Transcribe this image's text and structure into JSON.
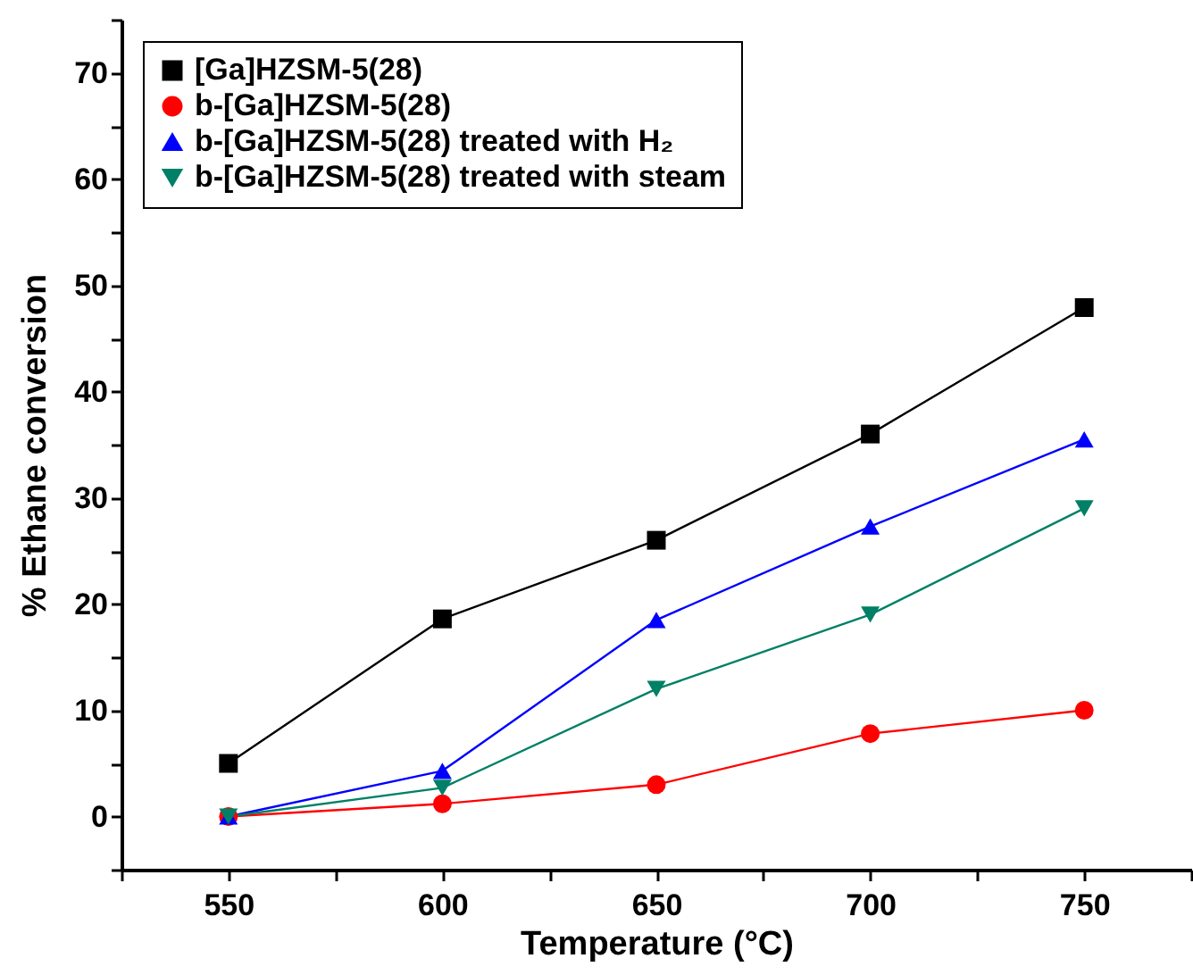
{
  "chart_data": {
    "type": "line",
    "xlabel": "Temperature (°C)",
    "ylabel": "% Ethane conversion",
    "x": [
      550,
      600,
      650,
      700,
      750
    ],
    "series": [
      {
        "name": "[Ga]HZSM-5(28)",
        "color": "#000000",
        "marker": "square",
        "values": [
          5,
          18.6,
          26,
          36,
          47.9
        ]
      },
      {
        "name": "b-[Ga]HZSM-5(28)",
        "color": "#ff0000",
        "marker": "circle",
        "values": [
          0,
          1.2,
          3,
          7.8,
          10
        ]
      },
      {
        "name": "b-[Ga]HZSM-5(28) treated with H₂",
        "color": "#0000ff",
        "marker": "triangle",
        "values": [
          0,
          4.3,
          18.5,
          27.3,
          35.5
        ]
      },
      {
        "name": "b-[Ga]HZSM-5(28) treated with steam",
        "color": "#008066",
        "marker": "triangle-down",
        "values": [
          0,
          2.7,
          12,
          19,
          29
        ]
      }
    ],
    "xlim": [
      525,
      775
    ],
    "xticks": [
      {
        "value": 525,
        "label": null
      },
      550,
      {
        "value": 575,
        "label": null
      },
      600,
      {
        "value": 625,
        "label": null
      },
      650,
      {
        "value": 675,
        "label": null
      },
      700,
      {
        "value": 725,
        "label": null
      },
      750,
      {
        "value": 775,
        "label": null
      }
    ],
    "ylim": [
      -5,
      75
    ],
    "yticks": [
      {
        "value": -5,
        "label": null
      },
      0,
      {
        "value": 5,
        "label": null
      },
      10,
      {
        "value": 15,
        "label": null
      },
      20,
      {
        "value": 25,
        "label": null
      },
      30,
      {
        "value": 35,
        "label": null
      },
      40,
      {
        "value": 45,
        "label": null
      },
      50,
      {
        "value": 55,
        "label": null
      },
      60,
      {
        "value": 65,
        "label": null
      },
      70,
      {
        "value": 75,
        "label": null
      }
    ],
    "grid": false,
    "legend": "top left",
    "line_style": "solid"
  }
}
